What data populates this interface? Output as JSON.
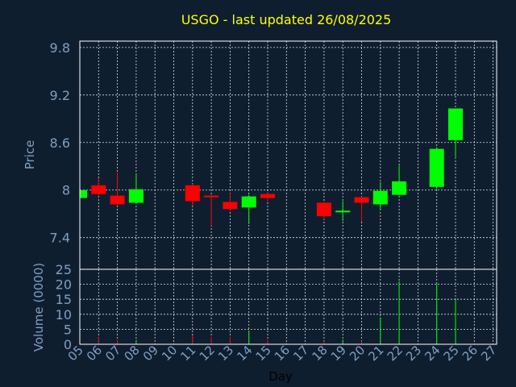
{
  "chart_data": {
    "type": "candlestick",
    "title": "USGO - last updated 26/08/2025",
    "xlabel": "Day",
    "ylabel_price": "Price",
    "ylabel_volume": "Volume (0000)",
    "x_ticks": [
      "05",
      "06",
      "07",
      "08",
      "09",
      "10",
      "11",
      "12",
      "13",
      "14",
      "15",
      "16",
      "17",
      "18",
      "19",
      "20",
      "21",
      "22",
      "23",
      "24",
      "25",
      "26",
      "27"
    ],
    "price_ticks": [
      "9.8",
      "9.2",
      "8.6",
      "8",
      "7.4"
    ],
    "volume_ticks": [
      "25",
      "20",
      "15",
      "10",
      "5",
      "0"
    ],
    "price_range": [
      7.0,
      9.88
    ],
    "volume_range": [
      0,
      25
    ],
    "grid": true,
    "candles": [
      {
        "x": 0,
        "open": 7.9,
        "close": 8.0,
        "high": 8.0,
        "low": 7.9,
        "volume": 0.3
      },
      {
        "x": 1,
        "open": 8.06,
        "close": 7.95,
        "high": 8.15,
        "low": 7.92,
        "volume": 2.5
      },
      {
        "x": 2,
        "open": 7.93,
        "close": 7.82,
        "high": 8.22,
        "low": 7.8,
        "volume": 1.5
      },
      {
        "x": 3,
        "open": 7.84,
        "close": 8.01,
        "high": 8.2,
        "low": 7.83,
        "volume": 1.5
      },
      {
        "x": 6,
        "open": 8.06,
        "close": 7.86,
        "high": 8.08,
        "low": 7.8,
        "volume": 3.0
      },
      {
        "x": 7,
        "open": 7.93,
        "close": 7.91,
        "high": 7.94,
        "low": 7.55,
        "volume": 2.5
      },
      {
        "x": 8,
        "open": 7.85,
        "close": 7.76,
        "high": 7.96,
        "low": 7.74,
        "volume": 2.5
      },
      {
        "x": 9,
        "open": 7.78,
        "close": 7.92,
        "high": 7.94,
        "low": 7.57,
        "volume": 4.5
      },
      {
        "x": 10,
        "open": 7.95,
        "close": 7.9,
        "high": 7.96,
        "low": 7.85,
        "volume": 1.5
      },
      {
        "x": 13,
        "open": 7.84,
        "close": 7.67,
        "high": 7.85,
        "low": 7.63,
        "volume": 1.0
      },
      {
        "x": 14,
        "open": 7.72,
        "close": 7.74,
        "high": 7.86,
        "low": 7.61,
        "volume": 1.5
      },
      {
        "x": 15,
        "open": 7.91,
        "close": 7.84,
        "high": 7.92,
        "low": 7.6,
        "volume": 1.0
      },
      {
        "x": 16,
        "open": 7.82,
        "close": 7.99,
        "high": 8.1,
        "low": 7.75,
        "volume": 9.0
      },
      {
        "x": 17,
        "open": 7.94,
        "close": 8.11,
        "high": 8.31,
        "low": 7.93,
        "volume": 21.0
      },
      {
        "x": 19,
        "open": 8.04,
        "close": 8.52,
        "high": 8.54,
        "low": 8.01,
        "volume": 20.0
      },
      {
        "x": 20,
        "open": 8.63,
        "close": 9.03,
        "high": 9.03,
        "low": 8.4,
        "volume": 15.0
      }
    ],
    "colors": {
      "up": "#00ff00",
      "down": "#ff0000",
      "background": "#0f1e2f",
      "axes_text": "#7f9fc0",
      "title": "#ffff00",
      "grid": "#ffffff"
    }
  }
}
